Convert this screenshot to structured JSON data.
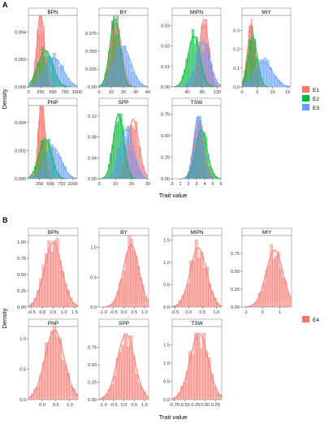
{
  "colors": {
    "E1": "#f8766d",
    "E2": "#00ba38",
    "E3": "#619cff",
    "E4": "#f8766d",
    "panel_bg": "#ffffff",
    "strip_bg": "#ffffff",
    "border": "#8a8a8a"
  },
  "chart_data": [
    {
      "panel_label": "A",
      "type": "histogram-density",
      "ylabel": "Density",
      "xlabel": "Trait value",
      "grid": false,
      "legend": {
        "position": "right",
        "entries": [
          "E1",
          "E2",
          "E3"
        ]
      },
      "facets": [
        {
          "title": "BPN",
          "xlim": [
            0,
            1000
          ],
          "ylim": [
            0,
            0.0052
          ],
          "xticks": [
            {
              "v": 0,
              "l": "0"
            },
            {
              "v": 250,
              "l": "250"
            },
            {
              "v": 500,
              "l": "500"
            },
            {
              "v": 750,
              "l": "750"
            },
            {
              "v": 1000,
              "l": "1000"
            }
          ],
          "yticks": [
            {
              "v": 0,
              "l": "0.000"
            },
            {
              "v": 0.002,
              "l": "0.002"
            },
            {
              "v": 0.004,
              "l": "0.004"
            }
          ],
          "series": [
            {
              "name": "E1",
              "mean": 250,
              "sd": 75
            },
            {
              "name": "E2",
              "mean": 350,
              "sd": 150
            },
            {
              "name": "E3",
              "mean": 520,
              "sd": 190
            }
          ]
        },
        {
          "title": "BY",
          "xlim": [
            0,
            40
          ],
          "ylim": [
            0,
            0.1
          ],
          "xticks": [
            {
              "v": 0,
              "l": "0"
            },
            {
              "v": 10,
              "l": "10"
            },
            {
              "v": 20,
              "l": "20"
            },
            {
              "v": 30,
              "l": "30"
            },
            {
              "v": 40,
              "l": "40"
            }
          ],
          "yticks": [
            {
              "v": 0,
              "l": "0.00"
            },
            {
              "v": 0.025,
              "l": "0.025"
            },
            {
              "v": 0.05,
              "l": "0.050"
            },
            {
              "v": 0.075,
              "l": "0.075"
            }
          ],
          "series": [
            {
              "name": "E1",
              "mean": 14,
              "sd": 4.5
            },
            {
              "name": "E2",
              "mean": 13,
              "sd": 4.2
            },
            {
              "name": "E3",
              "mean": 19,
              "sd": 7
            }
          ]
        },
        {
          "title": "MIPN",
          "xlim": [
            0,
            130
          ],
          "ylim": [
            0,
            0.035
          ],
          "xticks": [
            {
              "v": 40,
              "l": "40"
            },
            {
              "v": 80,
              "l": "80"
            },
            {
              "v": 120,
              "l": "120"
            }
          ],
          "yticks": [
            {
              "v": 0,
              "l": "0.00"
            },
            {
              "v": 0.01,
              "l": "0.01"
            },
            {
              "v": 0.02,
              "l": "0.02"
            },
            {
              "v": 0.03,
              "l": "0.03"
            }
          ],
          "series": [
            {
              "name": "E1",
              "mean": 85,
              "sd": 12
            },
            {
              "name": "E2",
              "mean": 58,
              "sd": 16
            },
            {
              "name": "E3",
              "mean": 82,
              "sd": 18
            }
          ]
        },
        {
          "title": "MIY",
          "xlim": [
            0,
            16
          ],
          "ylim": [
            0,
            0.38
          ],
          "xticks": [
            {
              "v": 0,
              "l": "0"
            },
            {
              "v": 5,
              "l": "5"
            },
            {
              "v": 10,
              "l": "10"
            },
            {
              "v": 15,
              "l": "15"
            }
          ],
          "yticks": [
            {
              "v": 0,
              "l": "0.0"
            },
            {
              "v": 0.1,
              "l": "0.1"
            },
            {
              "v": 0.2,
              "l": "0.2"
            },
            {
              "v": 0.3,
              "l": "0.3"
            }
          ],
          "series": [
            {
              "name": "E1",
              "mean": 3,
              "sd": 1.2
            },
            {
              "name": "E2",
              "mean": 3.5,
              "sd": 1.5
            },
            {
              "name": "E3",
              "mean": 7,
              "sd": 3
            }
          ]
        },
        {
          "title": "PNP",
          "xlim": [
            0,
            1100
          ],
          "ylim": [
            0,
            0.0052
          ],
          "xticks": [
            {
              "v": 250,
              "l": "250"
            },
            {
              "v": 500,
              "l": "500"
            },
            {
              "v": 750,
              "l": "750"
            },
            {
              "v": 1000,
              "l": "1000"
            }
          ],
          "yticks": [
            {
              "v": 0,
              "l": "0.000"
            },
            {
              "v": 0.002,
              "l": "0.002"
            },
            {
              "v": 0.004,
              "l": "0.004"
            }
          ],
          "series": [
            {
              "name": "E1",
              "mean": 300,
              "sd": 70
            },
            {
              "name": "E2",
              "mean": 380,
              "sd": 140
            },
            {
              "name": "E3",
              "mean": 560,
              "sd": 180
            }
          ]
        },
        {
          "title": "SPP",
          "xlim": [
            0,
            30
          ],
          "ylim": [
            0,
            0.14
          ],
          "xticks": [
            {
              "v": 0,
              "l": "0"
            },
            {
              "v": 10,
              "l": "10"
            },
            {
              "v": 20,
              "l": "20"
            },
            {
              "v": 30,
              "l": "30"
            }
          ],
          "yticks": [
            {
              "v": 0,
              "l": "0.00"
            },
            {
              "v": 0.04,
              "l": "0.04"
            },
            {
              "v": 0.08,
              "l": "0.08"
            },
            {
              "v": 0.12,
              "l": "0.12"
            }
          ],
          "series": [
            {
              "name": "E1",
              "mean": 21,
              "sd": 3.5
            },
            {
              "name": "E2",
              "mean": 12,
              "sd": 3.2
            },
            {
              "name": "E3",
              "mean": 17,
              "sd": 4.2
            }
          ]
        },
        {
          "title": "TSW",
          "xlim": [
            0,
            6
          ],
          "ylim": [
            0,
            0.85
          ],
          "xticks": [
            {
              "v": 0,
              "l": "0"
            },
            {
              "v": 1,
              "l": "1"
            },
            {
              "v": 2,
              "l": "2"
            },
            {
              "v": 3,
              "l": "3"
            },
            {
              "v": 4,
              "l": "4"
            },
            {
              "v": 5,
              "l": "5"
            },
            {
              "v": 6,
              "l": "6"
            }
          ],
          "yticks": [
            {
              "v": 0,
              "l": "0.00"
            },
            {
              "v": 0.25,
              "l": "0.25"
            },
            {
              "v": 0.5,
              "l": "0.50"
            },
            {
              "v": 0.75,
              "l": "0.75"
            }
          ],
          "series": [
            {
              "name": "E1",
              "mean": 3.3,
              "sd": 0.6
            },
            {
              "name": "E2",
              "mean": 3.6,
              "sd": 0.7
            },
            {
              "name": "E3",
              "mean": 3.2,
              "sd": 0.55
            }
          ]
        }
      ]
    },
    {
      "panel_label": "B",
      "type": "histogram-density",
      "ylabel": "Density",
      "xlabel": "Trait value",
      "grid": false,
      "legend": {
        "position": "right",
        "entries": [
          "E4"
        ]
      },
      "facets": [
        {
          "title": "BPN",
          "xlim": [
            -0.65,
            1.65
          ],
          "ylim": [
            0,
            1.1
          ],
          "xticks": [
            {
              "v": -0.5,
              "l": "-0.5"
            },
            {
              "v": 0,
              "l": "0.0"
            },
            {
              "v": 0.5,
              "l": "0.5"
            },
            {
              "v": 1,
              "l": "1.0"
            },
            {
              "v": 1.5,
              "l": "1.5"
            }
          ],
          "yticks": [
            {
              "v": 0,
              "l": "0.00"
            },
            {
              "v": 0.25,
              "l": "0.25"
            },
            {
              "v": 0.5,
              "l": "0.50"
            },
            {
              "v": 0.75,
              "l": "0.75"
            },
            {
              "v": 1,
              "l": "1.00"
            }
          ],
          "series": [
            {
              "name": "E4",
              "mean": 0.5,
              "sd": 0.4
            }
          ]
        },
        {
          "title": "BY",
          "xlim": [
            -1.2,
            1.2
          ],
          "ylim": [
            0,
            1.2
          ],
          "xticks": [
            {
              "v": -1,
              "l": "-1.0"
            },
            {
              "v": -0.5,
              "l": "-0.5"
            },
            {
              "v": 0,
              "l": "0.0"
            },
            {
              "v": 0.5,
              "l": "0.5"
            },
            {
              "v": 1,
              "l": "1.0"
            }
          ],
          "yticks": [
            {
              "v": 0,
              "l": "0.0"
            },
            {
              "v": 0.5,
              "l": "0.5"
            },
            {
              "v": 1,
              "l": "1.0"
            }
          ],
          "series": [
            {
              "name": "E4",
              "mean": 0.35,
              "sd": 0.38
            }
          ]
        },
        {
          "title": "MIPN",
          "xlim": [
            -0.6,
            1.2
          ],
          "ylim": [
            0,
            1.6
          ],
          "xticks": [
            {
              "v": -0.5,
              "l": "-0.5"
            },
            {
              "v": 0,
              "l": "0.0"
            },
            {
              "v": 0.5,
              "l": "0.5"
            },
            {
              "v": 1,
              "l": "1.0"
            }
          ],
          "yticks": [
            {
              "v": 0,
              "l": "0.0"
            },
            {
              "v": 0.5,
              "l": "0.5"
            },
            {
              "v": 1,
              "l": "1.0"
            },
            {
              "v": 1.5,
              "l": "1.5"
            }
          ],
          "series": [
            {
              "name": "E4",
              "mean": 0.35,
              "sd": 0.3
            }
          ]
        },
        {
          "title": "MIY",
          "xlim": [
            -1.2,
            1.7
          ],
          "ylim": [
            0,
            1.0
          ],
          "xticks": [
            {
              "v": -1,
              "l": "-1"
            },
            {
              "v": 0,
              "l": "0"
            },
            {
              "v": 1,
              "l": "1"
            }
          ],
          "yticks": [
            {
              "v": 0,
              "l": "0.00"
            },
            {
              "v": 0.25,
              "l": "0.25"
            },
            {
              "v": 0.5,
              "l": "0.50"
            },
            {
              "v": 0.75,
              "l": "0.75"
            }
          ],
          "series": [
            {
              "name": "E4",
              "mean": 0.7,
              "sd": 0.5
            }
          ]
        },
        {
          "title": "PNP",
          "xlim": [
            -0.5,
            1.3
          ],
          "ylim": [
            0,
            1.2
          ],
          "xticks": [
            {
              "v": 0,
              "l": "0.0"
            },
            {
              "v": 0.5,
              "l": "0.5"
            },
            {
              "v": 1,
              "l": "1.0"
            }
          ],
          "yticks": [
            {
              "v": 0,
              "l": "0.0"
            },
            {
              "v": 0.5,
              "l": "0.5"
            },
            {
              "v": 1,
              "l": "1.0"
            }
          ],
          "series": [
            {
              "name": "E4",
              "mean": 0.45,
              "sd": 0.35
            }
          ]
        },
        {
          "title": "SPP",
          "xlim": [
            -1.2,
            1.2
          ],
          "ylim": [
            0,
            1.05
          ],
          "xticks": [
            {
              "v": -1,
              "l": "-1.0"
            },
            {
              "v": -0.5,
              "l": "-0.5"
            },
            {
              "v": 0,
              "l": "0.0"
            },
            {
              "v": 0.5,
              "l": "0.5"
            },
            {
              "v": 1,
              "l": "1.0"
            }
          ],
          "yticks": [
            {
              "v": 0,
              "l": "0.00"
            },
            {
              "v": 0.25,
              "l": "0.25"
            },
            {
              "v": 0.5,
              "l": "0.50"
            },
            {
              "v": 0.75,
              "l": "0.75"
            }
          ],
          "series": [
            {
              "name": "E4",
              "mean": 0.1,
              "sd": 0.42
            }
          ]
        },
        {
          "title": "TSW",
          "xlim": [
            -0.8,
            0.4
          ],
          "ylim": [
            0,
            2.0
          ],
          "xticks": [
            {
              "v": -0.75,
              "l": "-0.75"
            },
            {
              "v": -0.5,
              "l": "-0.50"
            },
            {
              "v": -0.25,
              "l": "-0.25"
            },
            {
              "v": 0,
              "l": "0.00"
            },
            {
              "v": 0.25,
              "l": "0.25"
            }
          ],
          "yticks": [
            {
              "v": 0,
              "l": "0.0"
            },
            {
              "v": 0.5,
              "l": "0.5"
            },
            {
              "v": 1,
              "l": "1.0"
            },
            {
              "v": 1.5,
              "l": "1.5"
            }
          ],
          "series": [
            {
              "name": "E4",
              "mean": -0.15,
              "sd": 0.22
            }
          ]
        }
      ]
    }
  ]
}
